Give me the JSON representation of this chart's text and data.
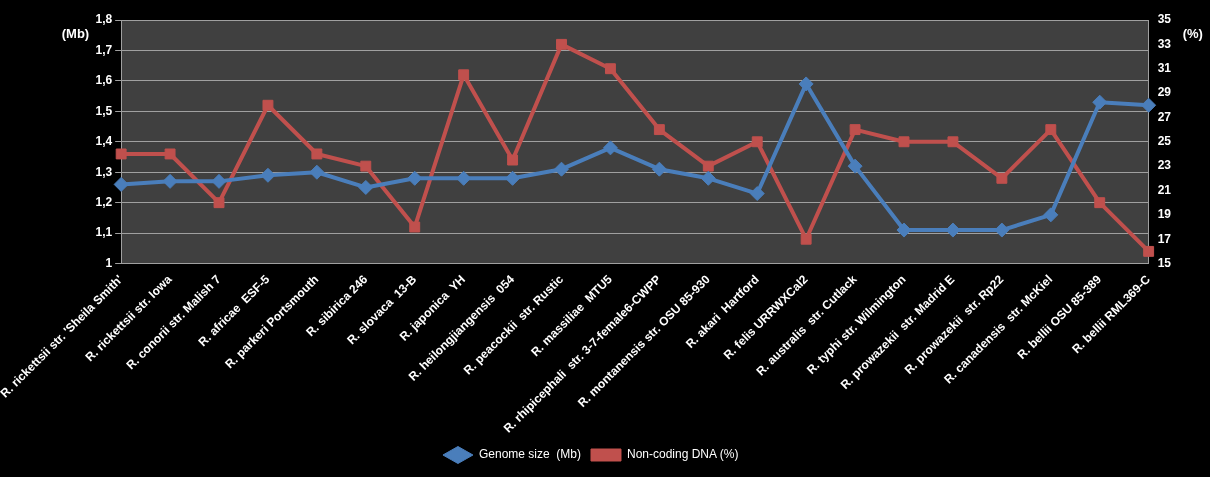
{
  "chart_data": {
    "type": "line",
    "ylabel": "(Mb)",
    "y2label": "(%)",
    "categories": [
      "R. rickettsii str. 'Sheila Smith'",
      "R. rickettsii str. Iowa",
      "R. conorii str. Malish 7",
      "R. africae  ESF-5",
      "R. parkeri Portsmouth",
      "R. sibirica 246",
      "R. slovaca  13-B",
      "R. japonica  YH",
      "R. heilongjiangensis  054",
      "R. peacockii  str. Rustic",
      "R. massiliae  MTU5",
      "R. rhipicephali  str. 3-7-female6-CWPP",
      "R. montanensis str. OSU 85-930",
      "R. akari  Hartford",
      "R. felis URRWXCal2",
      "R. australis  str. Cutlack",
      "R. typhi str. Wilmington",
      "R. prowazekii  str. Madrid E",
      "R. prowazekii  str. Rp22",
      "R. canadensis  str. McKiel",
      "R. bellii OSU 85-389",
      "R. bellii RML369-C"
    ],
    "series": [
      {
        "name": "Genome size  (Mb)",
        "color": "#4a7ebb",
        "marker": "diamond",
        "values": [
          1.26,
          1.27,
          1.27,
          1.29,
          1.3,
          1.25,
          1.28,
          1.28,
          1.28,
          1.31,
          1.38,
          1.31,
          1.28,
          1.23,
          1.59,
          1.32,
          1.11,
          1.11,
          1.11,
          1.16,
          1.53,
          1.52
        ]
      },
      {
        "name": "Non-coding DNA (%)",
        "color": "#c0504d",
        "marker": "square",
        "axis": "y2",
        "values": [
          24,
          24,
          20,
          28,
          24,
          23,
          18,
          30.5,
          23.5,
          33,
          31,
          26,
          23,
          25,
          17,
          26,
          25,
          25,
          22,
          26,
          20,
          16
        ]
      }
    ],
    "ylim": [
      1,
      1.8
    ],
    "yticks": [
      {
        "value": 1,
        "label": "1"
      },
      {
        "value": 1.1,
        "label": "1,1"
      },
      {
        "value": 1.2,
        "label": "1,2"
      },
      {
        "value": 1.3,
        "label": "1,3"
      },
      {
        "value": 1.4,
        "label": "1,4"
      },
      {
        "value": 1.5,
        "label": "1,5"
      },
      {
        "value": 1.6,
        "label": "1,6"
      },
      {
        "value": 1.7,
        "label": "1,7"
      },
      {
        "value": 1.8,
        "label": "1,8"
      }
    ],
    "y2lim": [
      15,
      35
    ],
    "y2ticks": [
      15,
      17,
      19,
      21,
      23,
      25,
      27,
      29,
      31,
      33,
      35
    ],
    "grid": "y",
    "legend": "bottom"
  }
}
